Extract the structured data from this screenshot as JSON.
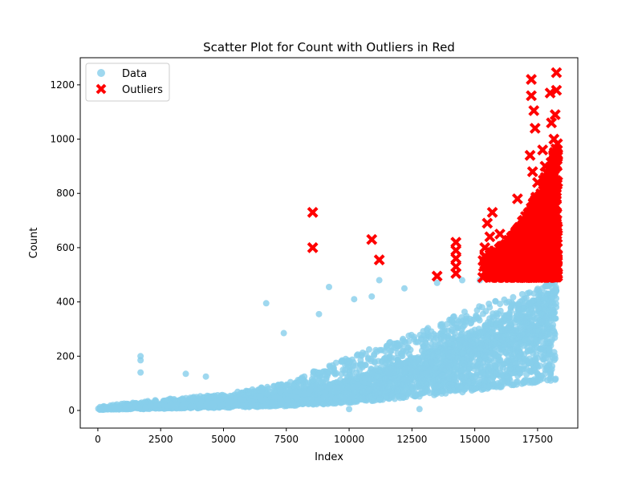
{
  "chart_data": {
    "type": "scatter",
    "title": "Scatter Plot for Count with Outliers in Red",
    "xlabel": "Index",
    "ylabel": "Count",
    "xlim": [
      -700,
      19100
    ],
    "ylim": [
      -65,
      1300
    ],
    "x_ticks": [
      0,
      2500,
      5000,
      7500,
      10000,
      12500,
      15000,
      17500
    ],
    "y_ticks": [
      0,
      200,
      400,
      600,
      800,
      1000,
      1200
    ],
    "x_tick_labels": [
      "0",
      "2500",
      "5000",
      "7500",
      "10000",
      "12500",
      "15000",
      "17500"
    ],
    "y_tick_labels": [
      "0",
      "200",
      "400",
      "600",
      "800",
      "1000",
      "1200"
    ],
    "legend": {
      "position": "top-left",
      "entries": [
        {
          "label": "Data",
          "marker": "circle",
          "color": "#87ceeb"
        },
        {
          "label": "Outliers",
          "marker": "x",
          "color": "#ff0000"
        }
      ]
    },
    "grid": false,
    "colors": {
      "data": "#87ceeb",
      "outliers": "#ff0000"
    },
    "series": [
      {
        "name": "Data",
        "marker": "circle",
        "trend": {
          "x": [
            0,
            1000,
            2500,
            5000,
            7500,
            10000,
            12500,
            15000,
            17500,
            18200
          ],
          "median": [
            5,
            10,
            15,
            25,
            40,
            70,
            120,
            180,
            260,
            280
          ],
          "upper": [
            15,
            25,
            40,
            60,
            100,
            200,
            280,
            380,
            450,
            480
          ]
        },
        "points": [
          {
            "x": 1700,
            "y": 200
          },
          {
            "x": 1700,
            "y": 185
          },
          {
            "x": 1700,
            "y": 140
          },
          {
            "x": 3500,
            "y": 135
          },
          {
            "x": 4300,
            "y": 125
          },
          {
            "x": 6700,
            "y": 395
          },
          {
            "x": 7400,
            "y": 285
          },
          {
            "x": 8800,
            "y": 355
          },
          {
            "x": 9200,
            "y": 455
          },
          {
            "x": 10200,
            "y": 410
          },
          {
            "x": 10900,
            "y": 420
          },
          {
            "x": 11200,
            "y": 480
          },
          {
            "x": 12200,
            "y": 450
          },
          {
            "x": 12800,
            "y": 5
          },
          {
            "x": 10000,
            "y": 5
          },
          {
            "x": 13500,
            "y": 470
          },
          {
            "x": 14500,
            "y": 480
          },
          {
            "x": 15200,
            "y": 480
          }
        ]
      },
      {
        "name": "Outliers",
        "marker": "x",
        "points": [
          {
            "x": 8550,
            "y": 730
          },
          {
            "x": 8550,
            "y": 600
          },
          {
            "x": 10900,
            "y": 630
          },
          {
            "x": 11200,
            "y": 555
          },
          {
            "x": 13500,
            "y": 495
          },
          {
            "x": 14250,
            "y": 620
          },
          {
            "x": 14250,
            "y": 590
          },
          {
            "x": 14250,
            "y": 560
          },
          {
            "x": 14250,
            "y": 530
          },
          {
            "x": 14250,
            "y": 505
          },
          {
            "x": 15400,
            "y": 600
          },
          {
            "x": 15400,
            "y": 570
          },
          {
            "x": 15400,
            "y": 540
          },
          {
            "x": 15400,
            "y": 510
          },
          {
            "x": 15500,
            "y": 690
          },
          {
            "x": 15600,
            "y": 640
          },
          {
            "x": 15700,
            "y": 730
          },
          {
            "x": 15800,
            "y": 580
          },
          {
            "x": 16000,
            "y": 650
          },
          {
            "x": 16200,
            "y": 600
          },
          {
            "x": 16400,
            "y": 530
          },
          {
            "x": 16600,
            "y": 640
          },
          {
            "x": 16700,
            "y": 780
          },
          {
            "x": 16900,
            "y": 600
          },
          {
            "x": 17000,
            "y": 560
          },
          {
            "x": 17200,
            "y": 940
          },
          {
            "x": 17250,
            "y": 1220
          },
          {
            "x": 17250,
            "y": 1160
          },
          {
            "x": 17350,
            "y": 1105
          },
          {
            "x": 17400,
            "y": 1040
          },
          {
            "x": 17300,
            "y": 880
          },
          {
            "x": 17500,
            "y": 840
          },
          {
            "x": 17600,
            "y": 700
          },
          {
            "x": 17700,
            "y": 960
          },
          {
            "x": 17800,
            "y": 900
          },
          {
            "x": 17900,
            "y": 820
          },
          {
            "x": 18000,
            "y": 1170
          },
          {
            "x": 18050,
            "y": 1060
          },
          {
            "x": 18150,
            "y": 1000
          },
          {
            "x": 18200,
            "y": 1090
          },
          {
            "x": 18250,
            "y": 1245
          },
          {
            "x": 18250,
            "y": 1180
          },
          {
            "x": 18250,
            "y": 950
          }
        ],
        "dense_region": {
          "x_range": [
            15300,
            18300
          ],
          "y_range": [
            490,
            900
          ]
        }
      }
    ]
  }
}
